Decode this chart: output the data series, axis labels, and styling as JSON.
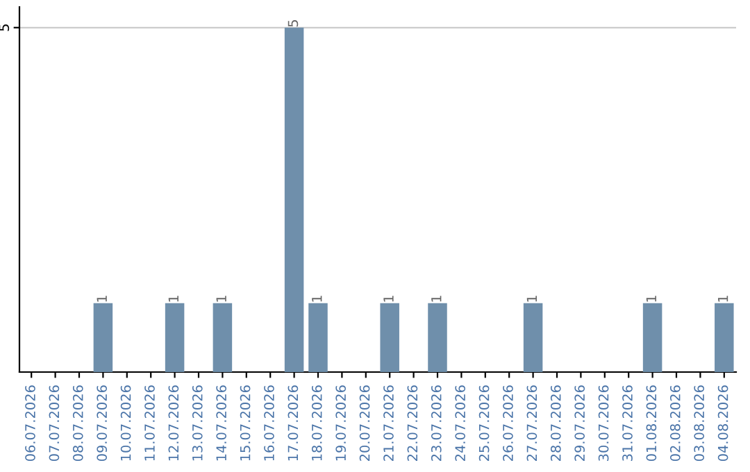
{
  "chart_data": {
    "type": "bar",
    "categories": [
      "06.07.2026",
      "07.07.2026",
      "08.07.2026",
      "09.07.2026",
      "10.07.2026",
      "11.07.2026",
      "12.07.2026",
      "13.07.2026",
      "14.07.2026",
      "15.07.2026",
      "16.07.2026",
      "17.07.2026",
      "18.07.2026",
      "19.07.2026",
      "20.07.2026",
      "21.07.2026",
      "22.07.2026",
      "23.07.2026",
      "24.07.2026",
      "25.07.2026",
      "26.07.2026",
      "27.07.2026",
      "28.07.2026",
      "29.07.2026",
      "30.07.2026",
      "31.07.2026",
      "01.08.2026",
      "02.08.2026",
      "03.08.2026",
      "04.08.2026"
    ],
    "values": [
      0,
      0,
      0,
      1,
      0,
      0,
      1,
      0,
      1,
      0,
      0,
      5,
      1,
      0,
      0,
      1,
      0,
      1,
      0,
      0,
      0,
      1,
      0,
      0,
      0,
      0,
      1,
      0,
      0,
      1
    ],
    "value_labels": [
      null,
      null,
      null,
      "1",
      null,
      null,
      "1",
      null,
      "1",
      null,
      null,
      "5",
      "1",
      null,
      null,
      "1",
      null,
      "1",
      null,
      null,
      null,
      "1",
      null,
      null,
      null,
      null,
      "1",
      null,
      null,
      "1"
    ],
    "color": "#6f8fab",
    "ylim": [
      0,
      5.3
    ],
    "yticks": [
      5
    ],
    "grid": "y",
    "legend": false
  }
}
